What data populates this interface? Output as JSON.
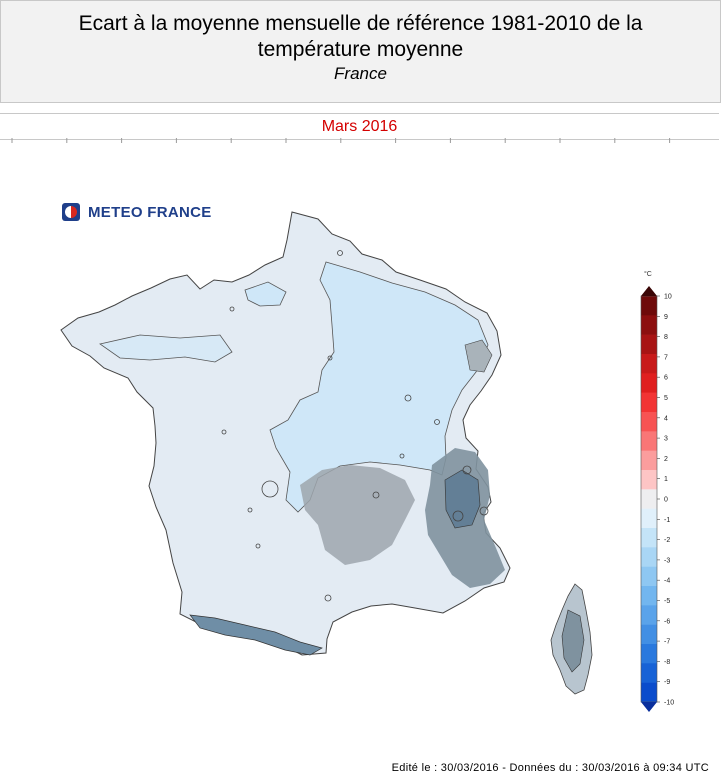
{
  "header": {
    "title_line1": "Ecart à la moyenne mensuelle de référence 1981-2010 de la",
    "title_line2": "température moyenne",
    "region": "France"
  },
  "period": "Mars 2016",
  "logo": {
    "text": "METEO FRANCE",
    "icon": "meteo-france-logo-icon"
  },
  "colorbar": {
    "unit": "°C",
    "ticks": [
      "10",
      "9",
      "8",
      "7",
      "6",
      "5",
      "4",
      "3",
      "2",
      "1",
      "0",
      "-1",
      "-2",
      "-3",
      "-4",
      "-5",
      "-6",
      "-7",
      "-8",
      "-9",
      "-10"
    ],
    "colors": [
      "#6e0a0a",
      "#8c0f0f",
      "#a81414",
      "#c81a1a",
      "#e01f1f",
      "#f23434",
      "#f75353",
      "#f97676",
      "#fb9d9d",
      "#fdc5c5",
      "#eeeef0",
      "#e0f0fb",
      "#c4e4f8",
      "#a9d6f5",
      "#8ec7f2",
      "#72b6ef",
      "#5aa3ea",
      "#428fe4",
      "#2a79de",
      "#1762d6",
      "#0a4ccc"
    ]
  },
  "footer": "Edité le : 30/03/2016 - Données du : 30/03/2016 à 09:34 UTC"
}
